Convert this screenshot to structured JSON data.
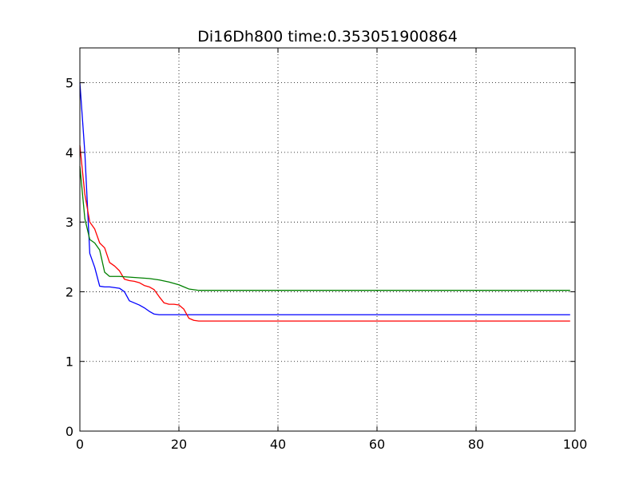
{
  "chart_data": {
    "type": "line",
    "title": "Di16Dh800  time:0.353051900864",
    "xlabel": "",
    "ylabel": "",
    "xlim": [
      0,
      100
    ],
    "ylim": [
      0,
      5.5
    ],
    "x_ticks": [
      0,
      20,
      40,
      60,
      80,
      100
    ],
    "x_tick_labels": [
      "0",
      "20",
      "40",
      "60",
      "80",
      "100"
    ],
    "y_ticks": [
      0,
      1,
      2,
      3,
      4,
      5
    ],
    "y_tick_labels": [
      "0",
      "1",
      "2",
      "3",
      "4",
      "5"
    ],
    "grid": true,
    "series": [
      {
        "color": "#0000ff",
        "x": [
          0,
          1,
          2,
          3,
          4,
          5,
          6,
          7,
          8,
          9,
          10,
          11,
          12,
          13,
          14,
          15,
          16,
          17,
          18,
          19,
          20,
          21,
          22,
          23,
          30,
          40,
          50,
          60,
          70,
          80,
          90,
          99
        ],
        "y": [
          5.0,
          4.0,
          2.55,
          2.35,
          2.08,
          2.07,
          2.07,
          2.06,
          2.05,
          2.0,
          1.87,
          1.84,
          1.81,
          1.77,
          1.72,
          1.68,
          1.67,
          1.67,
          1.67,
          1.67,
          1.67,
          1.67,
          1.67,
          1.67,
          1.67,
          1.67,
          1.67,
          1.67,
          1.67,
          1.67,
          1.67,
          1.67
        ]
      },
      {
        "color": "#ff0000",
        "x": [
          0,
          1,
          2,
          3,
          4,
          5,
          6,
          7,
          8,
          9,
          10,
          11,
          12,
          13,
          14,
          15,
          16,
          17,
          18,
          19,
          20,
          21,
          22,
          23,
          24,
          30,
          40,
          50,
          60,
          70,
          80,
          90,
          99
        ],
        "y": [
          4.1,
          3.4,
          3.0,
          2.9,
          2.7,
          2.63,
          2.42,
          2.37,
          2.3,
          2.18,
          2.16,
          2.15,
          2.13,
          2.09,
          2.07,
          2.03,
          1.93,
          1.84,
          1.82,
          1.82,
          1.81,
          1.75,
          1.62,
          1.59,
          1.58,
          1.58,
          1.58,
          1.58,
          1.58,
          1.58,
          1.58,
          1.58,
          1.58
        ]
      },
      {
        "color": "#008000",
        "x": [
          0,
          1,
          2,
          3,
          4,
          5,
          6,
          7,
          8,
          10,
          12,
          14,
          16,
          18,
          19,
          20,
          21,
          22,
          23,
          24,
          25,
          30,
          40,
          50,
          60,
          70,
          80,
          90,
          99
        ],
        "y": [
          3.8,
          3.05,
          2.75,
          2.7,
          2.6,
          2.28,
          2.22,
          2.22,
          2.22,
          2.21,
          2.2,
          2.19,
          2.17,
          2.14,
          2.12,
          2.1,
          2.07,
          2.04,
          2.03,
          2.02,
          2.02,
          2.02,
          2.02,
          2.02,
          2.02,
          2.02,
          2.02,
          2.02,
          2.02
        ]
      }
    ]
  }
}
